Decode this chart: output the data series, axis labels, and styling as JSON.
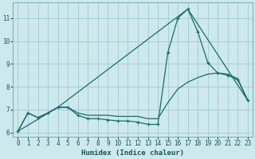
{
  "xlabel": "Humidex (Indice chaleur)",
  "background_color": "#cde9ed",
  "grid_color": "#a8cdd4",
  "line_color": "#1a6b6b",
  "xlim": [
    -0.5,
    23.5
  ],
  "ylim": [
    5.8,
    11.7
  ],
  "yticks": [
    6,
    7,
    8,
    9,
    10,
    11
  ],
  "xticks": [
    0,
    1,
    2,
    3,
    4,
    5,
    6,
    7,
    8,
    9,
    10,
    11,
    12,
    13,
    14,
    15,
    16,
    17,
    18,
    19,
    20,
    21,
    22,
    23
  ],
  "line1_x": [
    0,
    1,
    2,
    3,
    4,
    5,
    6,
    7,
    8,
    9,
    10,
    11,
    12,
    13,
    14,
    15,
    16,
    17,
    18,
    19,
    20,
    21,
    22,
    23
  ],
  "line1_y": [
    6.05,
    6.85,
    6.65,
    6.85,
    7.1,
    7.1,
    6.75,
    6.6,
    6.6,
    6.55,
    6.5,
    6.5,
    6.45,
    6.35,
    6.35,
    9.5,
    11.0,
    11.4,
    10.4,
    9.05,
    8.6,
    8.5,
    8.3,
    7.4
  ],
  "line2_x": [
    0,
    1,
    2,
    3,
    4,
    5,
    6,
    7,
    8,
    9,
    10,
    11,
    12,
    13,
    14,
    15,
    16,
    17,
    18,
    19,
    20,
    21,
    22,
    23
  ],
  "line2_y": [
    6.05,
    6.85,
    6.65,
    6.85,
    7.1,
    7.1,
    6.85,
    6.75,
    6.75,
    6.75,
    6.7,
    6.7,
    6.7,
    6.6,
    6.6,
    7.3,
    7.9,
    8.2,
    8.4,
    8.55,
    8.6,
    8.55,
    8.35,
    7.4
  ],
  "line3_x": [
    0,
    4,
    17,
    23
  ],
  "line3_y": [
    6.05,
    7.1,
    11.4,
    7.4
  ]
}
